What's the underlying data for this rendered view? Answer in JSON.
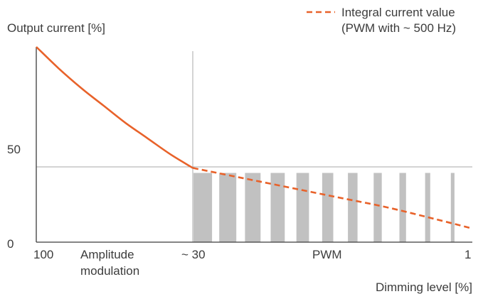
{
  "chart_data": {
    "type": "line",
    "ylabel": "Output current [%]",
    "xlabel": "Dimming level [%]",
    "y_ticks": [
      "50",
      "0"
    ],
    "x_ticks": [
      "100",
      "~ 30",
      "1"
    ],
    "region_labels": {
      "amplitude_line1": "Amplitude",
      "amplitude_line2": "modulation",
      "pwm": "PWM"
    },
    "legend": {
      "line1": "Integral current value",
      "line2": "(PWM with ~ 500 Hz)",
      "position": "top-right"
    },
    "threshold_level_percent": 40,
    "transition_dimming_percent": 30,
    "amplitude_curve": {
      "dimming": [
        100,
        90,
        80,
        70,
        60,
        50,
        40,
        30
      ],
      "output": [
        100,
        89,
        79,
        70,
        61,
        53,
        45,
        38
      ]
    },
    "pwm_integral_curve": {
      "dimming": [
        30,
        25,
        20,
        15,
        10,
        5,
        1
      ],
      "output": [
        38,
        33,
        28,
        23,
        18,
        12,
        7
      ]
    },
    "pwm_pulse_count": 11,
    "colors": {
      "curve": "#e8622a",
      "pulse": "#c1c1c1",
      "axis": "#3c3c3c",
      "guide": "#a8a8a8",
      "text": "#3c3c3c"
    }
  }
}
